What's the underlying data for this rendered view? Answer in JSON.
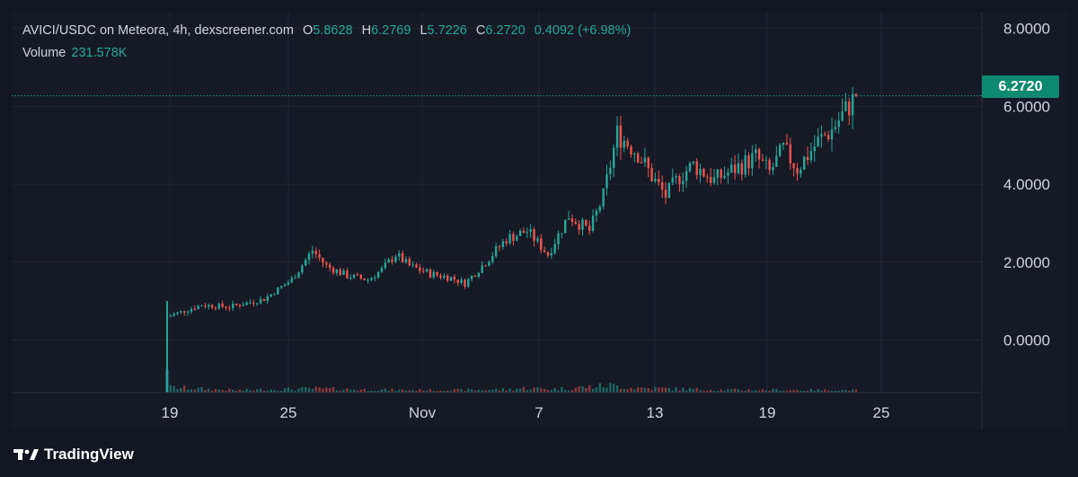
{
  "legend": {
    "title": "AVICI/USDC on Meteora, 4h, dexscreener.com",
    "o_label": "O",
    "o_value": "5.8628",
    "h_label": "H",
    "h_value": "6.2769",
    "l_label": "L",
    "l_value": "5.7226",
    "c_label": "C",
    "c_value": "6.2720",
    "change": "0.4092 (+6.98%)",
    "volume_label": "Volume",
    "volume_value": "231.578K"
  },
  "last_price_label": "6.2720",
  "footer": {
    "brand": "TradingView"
  },
  "colors": {
    "up": "#26a69a",
    "down": "#ef5350",
    "background": "#161a25",
    "grid": "#232632",
    "price_line": "#1e9e86"
  },
  "chart_data": {
    "type": "candlestick",
    "x_axis_labels": [
      "19",
      "25",
      "Nov",
      "7",
      "13",
      "19",
      "25"
    ],
    "y_axis_labels": [
      "8.0000",
      "6.0000",
      "4.0000",
      "2.0000",
      "0.0000"
    ],
    "ylim": [
      -1.35,
      8.2
    ],
    "grid": true,
    "last_price": 6.272,
    "close_path": [
      [
        0,
        0.6
      ],
      [
        10,
        0.9
      ],
      [
        18,
        0.85
      ],
      [
        28,
        1.05
      ],
      [
        36,
        1.55
      ],
      [
        42,
        2.3
      ],
      [
        46,
        1.9
      ],
      [
        52,
        1.65
      ],
      [
        58,
        1.55
      ],
      [
        62,
        1.8
      ],
      [
        66,
        2.2
      ],
      [
        70,
        1.9
      ],
      [
        76,
        1.7
      ],
      [
        82,
        1.6
      ],
      [
        86,
        1.45
      ],
      [
        92,
        2.0
      ],
      [
        98,
        2.6
      ],
      [
        104,
        2.8
      ],
      [
        110,
        2.2
      ],
      [
        116,
        3.2
      ],
      [
        122,
        2.8
      ],
      [
        126,
        3.7
      ],
      [
        130,
        5.3
      ],
      [
        136,
        4.8
      ],
      [
        140,
        4.2
      ],
      [
        144,
        3.7
      ],
      [
        148,
        4.2
      ],
      [
        152,
        4.5
      ],
      [
        158,
        4.1
      ],
      [
        164,
        4.4
      ],
      [
        170,
        4.7
      ],
      [
        174,
        4.3
      ],
      [
        178,
        4.9
      ],
      [
        182,
        4.4
      ],
      [
        188,
        5.1
      ],
      [
        192,
        5.4
      ],
      [
        196,
        5.9
      ],
      [
        199,
        6.27
      ]
    ],
    "volume_path": [
      [
        0,
        60
      ],
      [
        20,
        25
      ],
      [
        42,
        45
      ],
      [
        60,
        30
      ],
      [
        80,
        25
      ],
      [
        98,
        35
      ],
      [
        104,
        50
      ],
      [
        112,
        40
      ],
      [
        128,
        80
      ],
      [
        134,
        55
      ],
      [
        160,
        30
      ],
      [
        199,
        25
      ]
    ]
  }
}
